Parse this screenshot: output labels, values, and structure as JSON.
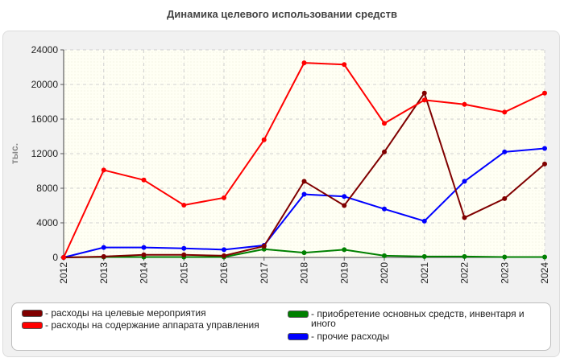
{
  "chart_data": {
    "type": "line",
    "title": "Динамика целевого использовании средств",
    "ylabel": "тыс.",
    "xlabel": "",
    "x": [
      "2012",
      "2013",
      "2014",
      "2015",
      "2016",
      "2017",
      "2018",
      "2019",
      "2020",
      "2021",
      "2022",
      "2023",
      "2024"
    ],
    "ylim": [
      0,
      24000
    ],
    "yticks": [
      0,
      4000,
      8000,
      12000,
      16000,
      20000,
      24000
    ],
    "ytick_labels": [
      "0",
      "4000",
      "8000",
      "12000",
      "16000",
      "20000",
      "24000"
    ],
    "grid": true,
    "legend_position": "bottom",
    "series": [
      {
        "name": "- расходы на целевые мероприятия",
        "color": "#800000",
        "values": [
          0,
          100,
          300,
          300,
          200,
          1300,
          8800,
          6000,
          12200,
          19000,
          4600,
          6800,
          10800
        ]
      },
      {
        "name": "- расходы на содержание аппарата управления",
        "color": "#ff0000",
        "values": [
          0,
          10100,
          8950,
          6050,
          6900,
          13600,
          22500,
          22300,
          15500,
          18200,
          17700,
          16800,
          19000
        ]
      },
      {
        "name": "- приобретение основных средств, инвентаря и иного",
        "color": "#008000",
        "values": [
          0,
          50,
          50,
          50,
          50,
          950,
          550,
          900,
          200,
          100,
          100,
          50,
          50
        ]
      },
      {
        "name": "- прочие расходы",
        "color": "#0000ff",
        "values": [
          0,
          1150,
          1150,
          1050,
          900,
          1400,
          7300,
          7050,
          5600,
          4200,
          8800,
          12200,
          12600
        ]
      }
    ]
  }
}
